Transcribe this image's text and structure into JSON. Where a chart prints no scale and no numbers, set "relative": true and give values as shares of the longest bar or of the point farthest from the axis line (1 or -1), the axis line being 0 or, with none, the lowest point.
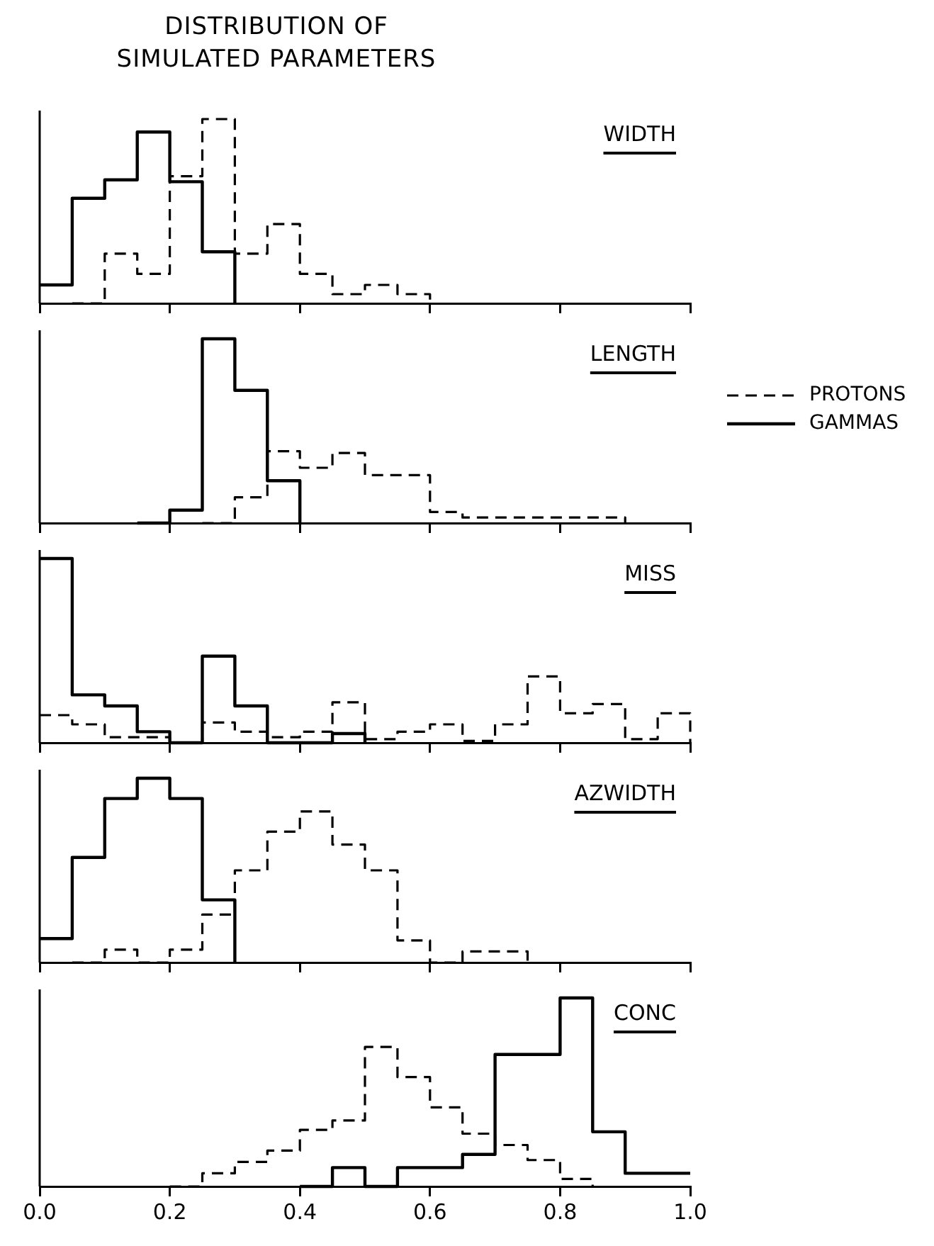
{
  "chart_data": [
    {
      "type": "step",
      "title": "DISTRIBUTION OF SIMULATED PARAMETERS",
      "annotations": [
        "WIDTH"
      ],
      "relative": true,
      "xlim": [
        0,
        1
      ],
      "xticks": [
        {
          "value": 0,
          "label": null
        },
        {
          "value": 0.2,
          "label": null
        },
        {
          "value": 0.4,
          "label": null
        },
        {
          "value": 0.6,
          "label": null
        },
        {
          "value": 0.8,
          "label": null
        },
        {
          "value": 1,
          "label": null
        }
      ],
      "tick_labels": false,
      "grid": false,
      "series": [
        {
          "color": "#000000",
          "line_style": "dashed",
          "x": [
            0.05,
            0.1,
            0.15,
            0.2,
            0.25,
            0.3,
            0.35,
            0.4,
            0.45,
            0.5,
            0.55,
            0.6
          ],
          "values": [
            0,
            0.27,
            0.16,
            0.69,
            1.0,
            0.27,
            0.43,
            0.16,
            0.05,
            0.1,
            0.05,
            0
          ]
        },
        {
          "color": "#000000",
          "line_style": "solid",
          "x": [
            0,
            0.05,
            0.1,
            0.15,
            0.2,
            0.25,
            0.3
          ],
          "values": [
            0.1,
            0.57,
            0.67,
            0.93,
            0.66,
            0.28,
            0
          ]
        }
      ]
    },
    {
      "type": "step",
      "annotations": [
        "LENGTH"
      ],
      "relative": true,
      "xlim": [
        0,
        1
      ],
      "xticks": [
        {
          "value": 0,
          "label": null
        },
        {
          "value": 0.2,
          "label": null
        },
        {
          "value": 0.4,
          "label": null
        },
        {
          "value": 0.6,
          "label": null
        },
        {
          "value": 0.8,
          "label": null
        },
        {
          "value": 1,
          "label": null
        }
      ],
      "tick_labels": false,
      "grid": false,
      "legend": "right",
      "series": [
        {
          "name": "PROTONS",
          "color": "#000000",
          "line_style": "dashed",
          "x": [
            0.25,
            0.3,
            0.35,
            0.4,
            0.45,
            0.5,
            0.55,
            0.6,
            0.65,
            0.7,
            0.75,
            0.8,
            0.85,
            0.9
          ],
          "values": [
            0,
            0.14,
            0.39,
            0.3,
            0.38,
            0.26,
            0.26,
            0.06,
            0.03,
            0.03,
            0.03,
            0.03,
            0.03,
            0
          ]
        },
        {
          "name": "GAMMAS",
          "color": "#000000",
          "line_style": "solid",
          "x": [
            0.15,
            0.2,
            0.25,
            0.3,
            0.35,
            0.4
          ],
          "values": [
            0,
            0.07,
            1.0,
            0.72,
            0.23,
            0
          ]
        }
      ]
    },
    {
      "type": "step",
      "annotations": [
        "MISS"
      ],
      "relative": true,
      "xlim": [
        0,
        1
      ],
      "xticks": [
        {
          "value": 0,
          "label": null
        },
        {
          "value": 0.2,
          "label": null
        },
        {
          "value": 0.4,
          "label": null
        },
        {
          "value": 0.6,
          "label": null
        },
        {
          "value": 0.8,
          "label": null
        },
        {
          "value": 1,
          "label": null
        }
      ],
      "tick_labels": false,
      "grid": false,
      "series": [
        {
          "color": "#000000",
          "line_style": "dashed",
          "x": [
            0,
            0.05,
            0.1,
            0.15,
            0.2,
            0.25,
            0.3,
            0.35,
            0.4,
            0.45,
            0.5,
            0.55,
            0.6,
            0.65,
            0.7,
            0.75,
            0.8,
            0.85,
            0.9,
            0.95,
            1
          ],
          "values": [
            0.15,
            0.1,
            0.03,
            0.03,
            0,
            0.11,
            0.06,
            0.03,
            0.06,
            0.22,
            0.02,
            0.06,
            0.1,
            0.01,
            0.1,
            0.36,
            0.16,
            0.21,
            0.02,
            0.16,
            0
          ]
        },
        {
          "color": "#000000",
          "line_style": "solid",
          "x": [
            0,
            0.05,
            0.1,
            0.15,
            0.2,
            0.25,
            0.3,
            0.35,
            0.4,
            0.45,
            0.5
          ],
          "values": [
            1.0,
            0.26,
            0.2,
            0.06,
            0,
            0.47,
            0.2,
            0,
            0,
            0.05,
            0
          ]
        }
      ]
    },
    {
      "type": "step",
      "annotations": [
        "AZWIDTH"
      ],
      "relative": true,
      "xlim": [
        0,
        1
      ],
      "xticks": [
        {
          "value": 0,
          "label": null
        },
        {
          "value": 0.2,
          "label": null
        },
        {
          "value": 0.4,
          "label": null
        },
        {
          "value": 0.6,
          "label": null
        },
        {
          "value": 0.8,
          "label": null
        },
        {
          "value": 1,
          "label": null
        }
      ],
      "tick_labels": false,
      "grid": false,
      "series": [
        {
          "color": "#000000",
          "line_style": "dashed",
          "x": [
            0.05,
            0.1,
            0.15,
            0.2,
            0.25,
            0.3,
            0.35,
            0.4,
            0.45,
            0.5,
            0.55,
            0.6,
            0.65,
            0.7,
            0.75
          ],
          "values": [
            0,
            0.07,
            0,
            0.07,
            0.26,
            0.5,
            0.71,
            0.82,
            0.64,
            0.5,
            0.12,
            0,
            0.06,
            0.06,
            0
          ]
        },
        {
          "color": "#000000",
          "line_style": "solid",
          "x": [
            0,
            0.05,
            0.1,
            0.15,
            0.2,
            0.25,
            0.3
          ],
          "values": [
            0.13,
            0.57,
            0.89,
            1.0,
            0.89,
            0.34,
            0
          ]
        }
      ]
    },
    {
      "type": "step",
      "annotations": [
        "CONC"
      ],
      "relative": true,
      "xlim": [
        0,
        1
      ],
      "xticks": [
        {
          "value": 0,
          "label": "0.0"
        },
        0.2,
        0.4,
        0.6,
        0.8,
        {
          "value": 1,
          "label": "1.0"
        }
      ],
      "tick_labels": "x",
      "grid": false,
      "series": [
        {
          "color": "#000000",
          "line_style": "dashed",
          "x": [
            0.2,
            0.25,
            0.3,
            0.35,
            0.4,
            0.45,
            0.5,
            0.55,
            0.6,
            0.65,
            0.7,
            0.75,
            0.8,
            0.85
          ],
          "values": [
            0,
            0.07,
            0.13,
            0.19,
            0.3,
            0.35,
            0.74,
            0.58,
            0.42,
            0.28,
            0.22,
            0.14,
            0.04,
            0
          ]
        },
        {
          "color": "#000000",
          "line_style": "solid",
          "x": [
            0.4,
            0.45,
            0.5,
            0.55,
            0.6,
            0.65,
            0.7,
            0.75,
            0.8,
            0.85,
            0.9,
            0.95,
            1
          ],
          "values": [
            0,
            0.1,
            0,
            0.1,
            0.1,
            0.17,
            0.7,
            0.7,
            1.0,
            0.29,
            0.07,
            0.07,
            0.07
          ]
        }
      ]
    }
  ]
}
